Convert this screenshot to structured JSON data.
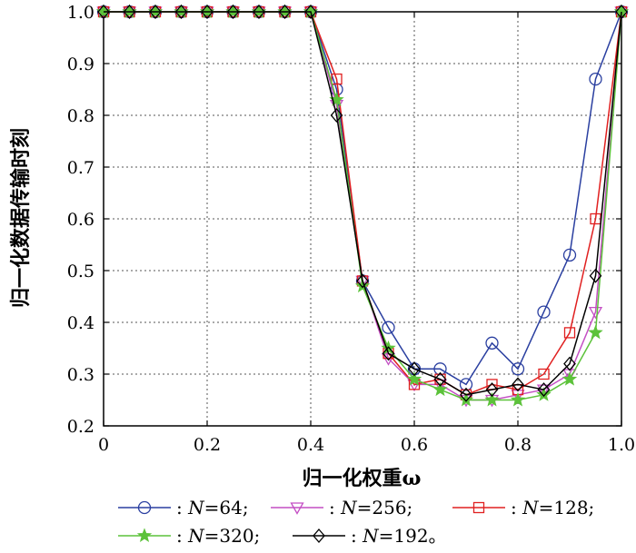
{
  "chart_data": {
    "type": "line",
    "xlabel": "归一化权重ω",
    "ylabel": "归一化数据传输时刻",
    "xlim": [
      0,
      1
    ],
    "ylim": [
      0.2,
      1.0
    ],
    "xticks": [
      "0",
      "0.2",
      "0.4",
      "0.6",
      "0.8",
      "1.0"
    ],
    "yticks": [
      "0.2",
      "0.3",
      "0.4",
      "0.5",
      "0.6",
      "0.7",
      "0.8",
      "0.9",
      "1.0"
    ],
    "grid": true,
    "legend_position": "bottom",
    "x": [
      0,
      0.05,
      0.1,
      0.15,
      0.2,
      0.25,
      0.3,
      0.35,
      0.4,
      0.45,
      0.5,
      0.55,
      0.6,
      0.65,
      0.7,
      0.75,
      0.8,
      0.85,
      0.9,
      0.95,
      1.0
    ],
    "series": [
      {
        "name": "N=64",
        "legend_prefix": ": ",
        "legend_var": "N",
        "legend_rest": "=64;",
        "color": "#2a3fa0",
        "marker": "circle",
        "values": [
          1,
          1,
          1,
          1,
          1,
          1,
          1,
          1,
          1,
          0.85,
          0.48,
          0.39,
          0.31,
          0.31,
          0.28,
          0.36,
          0.31,
          0.42,
          0.53,
          0.87,
          1.0
        ]
      },
      {
        "name": "N=256",
        "legend_prefix": ": ",
        "legend_var": "N",
        "legend_rest": "=256;",
        "color": "#c44fc4",
        "marker": "triangle-down",
        "values": [
          1,
          1,
          1,
          1,
          1,
          1,
          1,
          1,
          1,
          0.82,
          0.48,
          0.33,
          0.28,
          0.28,
          0.25,
          0.25,
          0.26,
          0.27,
          0.3,
          0.42,
          1.0
        ]
      },
      {
        "name": "N=128",
        "legend_prefix": ": ",
        "legend_var": "N",
        "legend_rest": "=128;",
        "color": "#e02020",
        "marker": "square",
        "values": [
          1,
          1,
          1,
          1,
          1,
          1,
          1,
          1,
          1,
          0.87,
          0.48,
          0.34,
          0.28,
          0.29,
          0.26,
          0.28,
          0.27,
          0.3,
          0.38,
          0.6,
          1.0
        ]
      },
      {
        "name": "N=320",
        "legend_prefix": ": ",
        "legend_var": "N",
        "legend_rest": "=320;",
        "color": "#5cc23a",
        "marker": "star",
        "values": [
          1,
          1,
          1,
          1,
          1,
          1,
          1,
          1,
          1,
          0.83,
          0.47,
          0.35,
          0.29,
          0.27,
          0.25,
          0.25,
          0.25,
          0.26,
          0.29,
          0.38,
          1.0
        ]
      },
      {
        "name": "N=192",
        "legend_prefix": ": ",
        "legend_var": "N",
        "legend_rest": "=192。",
        "color": "#000000",
        "marker": "diamond",
        "values": [
          1,
          1,
          1,
          1,
          1,
          1,
          1,
          1,
          1,
          0.8,
          0.48,
          0.34,
          0.31,
          0.29,
          0.26,
          0.27,
          0.28,
          0.27,
          0.32,
          0.49,
          1.0
        ]
      }
    ]
  }
}
